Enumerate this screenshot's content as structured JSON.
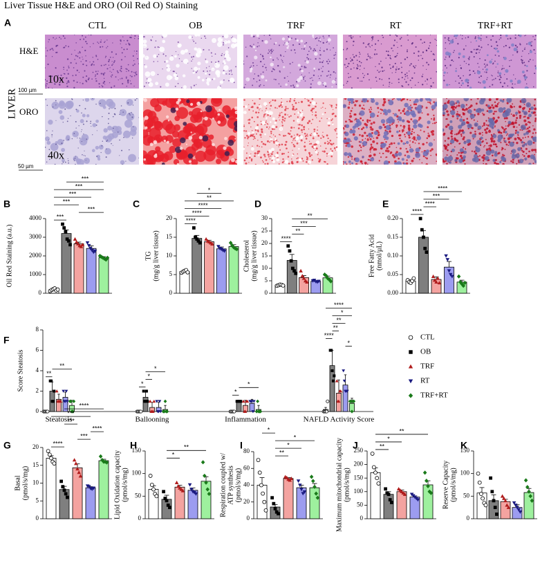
{
  "title": "Liver Tissue H&E and ORO (Oil Red O) Staining",
  "panel_a": {
    "panel": "A",
    "organ": "LIVER",
    "columns": [
      "CTL",
      "OB",
      "TRF",
      "RT",
      "TRF+RT"
    ],
    "rows": [
      {
        "name": "H&E",
        "magnification": "10x",
        "scale": "100 µm"
      },
      {
        "name": "ORO",
        "magnification": "40x",
        "scale": "50 µm"
      }
    ]
  },
  "legend": [
    {
      "name": "CTL",
      "color": "#ffffff",
      "marker": "circle",
      "marker_color": "#000000"
    },
    {
      "name": "OB",
      "color": "#7f7f7f",
      "marker": "square",
      "marker_color": "#000000"
    },
    {
      "name": "TRF",
      "color": "#f4a3a0",
      "marker": "triangle",
      "marker_color": "#b01c1c"
    },
    {
      "name": "RT",
      "color": "#9c9cf0",
      "marker": "triangle-down",
      "marker_color": "#1a1a80"
    },
    {
      "name": "TRF+RT",
      "color": "#9ef09e",
      "marker": "diamond",
      "marker_color": "#1a7a1a"
    }
  ],
  "chart_data": [
    {
      "type": "bar",
      "panel": "B",
      "ylabel": [
        "Oil Red Staining (a.u.)"
      ],
      "ylim": [
        0,
        4000
      ],
      "yticks": [
        0,
        1000,
        2000,
        3000,
        4000
      ],
      "values": [
        200,
        3200,
        2650,
        2400,
        1900
      ],
      "errors": [
        40,
        190,
        90,
        140,
        60
      ],
      "points": [
        [
          120,
          180,
          220,
          260,
          150,
          200
        ],
        [
          3700,
          3500,
          3300,
          2900,
          2800,
          2600
        ],
        [
          2900,
          2750,
          2650,
          2550,
          2500,
          2600
        ],
        [
          2700,
          2550,
          2400,
          2300,
          2200,
          2250
        ],
        [
          2000,
          1950,
          1900,
          1850,
          1800,
          1900
        ]
      ],
      "significance": [
        {
          "from": 0,
          "to": 1,
          "text": "***"
        },
        {
          "from": 2,
          "to": 4,
          "text": "***"
        },
        {
          "from": 0,
          "to": 2,
          "text": "***"
        },
        {
          "from": 0,
          "to": 3,
          "text": "***"
        },
        {
          "from": 0,
          "to": 4,
          "text": "***"
        },
        {
          "from": 1,
          "to": 4,
          "text": "***"
        }
      ]
    },
    {
      "type": "bar",
      "panel": "C",
      "ylabel": [
        "TG",
        "(mg/g liver tissue)"
      ],
      "ylim": [
        0,
        20
      ],
      "yticks": [
        0,
        5,
        10,
        15,
        20
      ],
      "values": [
        5.8,
        14.7,
        13.8,
        11.9,
        12.5
      ],
      "errors": [
        0.2,
        0.8,
        0.4,
        0.5,
        0.5
      ],
      "points": [
        [
          5.5,
          5.8,
          6.0,
          6.2,
          5.6
        ],
        [
          17.5,
          15,
          14.5,
          14,
          13.5
        ],
        [
          14.5,
          14,
          13.8,
          13.5,
          13.2
        ],
        [
          12.5,
          12,
          11.8,
          11.5,
          11.3
        ],
        [
          13.5,
          12.8,
          12.3,
          12,
          11.8
        ]
      ],
      "significance": [
        {
          "from": 0,
          "to": 1,
          "text": "****"
        },
        {
          "from": 0,
          "to": 2,
          "text": "****"
        },
        {
          "from": 0,
          "to": 3,
          "text": "****"
        },
        {
          "from": 0,
          "to": 4,
          "text": "**"
        },
        {
          "from": 1,
          "to": 3,
          "text": "*"
        }
      ]
    },
    {
      "type": "bar",
      "panel": "D",
      "ylabel": [
        "Cholesterol",
        "(mg/g liver tissue)"
      ],
      "ylim": [
        0,
        30
      ],
      "yticks": [
        0,
        5,
        10,
        15,
        20,
        25,
        30
      ],
      "values": [
        3.3,
        13.2,
        6.3,
        4.8,
        6.2
      ],
      "errors": [
        0.3,
        2.4,
        0.8,
        0.3,
        0.7
      ],
      "points": [
        [
          3,
          3.2,
          3.5,
          3.4,
          3.1
        ],
        [
          19,
          17,
          13,
          10,
          9,
          8
        ],
        [
          9,
          7,
          6,
          5,
          4.5
        ],
        [
          5,
          5.2,
          4.7,
          4.5,
          4.8
        ],
        [
          7.5,
          7,
          6,
          5.5,
          4.8
        ]
      ],
      "significance": [
        {
          "from": 0,
          "to": 1,
          "text": "****"
        },
        {
          "from": 1,
          "to": 2,
          "text": "**"
        },
        {
          "from": 1,
          "to": 3,
          "text": "***"
        },
        {
          "from": 1,
          "to": 4,
          "text": "**"
        }
      ]
    },
    {
      "type": "bar",
      "panel": "E",
      "ylabel": [
        "Free Fatty Acid",
        "(nmol/µL)"
      ],
      "ylim": [
        0,
        0.2
      ],
      "yticks": [
        {
          "value": 0,
          "label": "0.00"
        },
        {
          "value": 0.05,
          "label": "0.05"
        },
        {
          "value": 0.1,
          "label": "0.10"
        },
        {
          "value": 0.15,
          "label": "0.15"
        },
        {
          "value": 0.2,
          "label": "0.20"
        }
      ],
      "values": [
        0.033,
        0.15,
        0.037,
        0.07,
        0.03
      ],
      "errors": [
        0.003,
        0.018,
        0.007,
        0.015,
        0.005
      ],
      "points": [
        [
          0.035,
          0.03,
          0.028,
          0.033,
          0.04
        ],
        [
          0.2,
          0.17,
          0.15,
          0.12,
          0.11
        ],
        [
          0.045,
          0.035,
          0.03,
          0.04,
          0.028
        ],
        [
          0.1,
          0.09,
          0.06,
          0.05,
          0.045
        ],
        [
          0.045,
          0.03,
          0.025,
          0.02,
          0.028
        ]
      ],
      "significance": [
        {
          "from": 0,
          "to": 1,
          "text": "****"
        },
        {
          "from": 1,
          "to": 2,
          "text": "****"
        },
        {
          "from": 1,
          "to": 3,
          "text": "***"
        },
        {
          "from": 1,
          "to": 4,
          "text": "****"
        }
      ]
    },
    {
      "type": "grouped_bar",
      "panel": "F",
      "ylabel": [
        "Score Steatosis"
      ],
      "ylim": [
        0,
        8
      ],
      "yticks": [
        0,
        2,
        4,
        6,
        8
      ],
      "categories": [
        "Steatosis",
        "Ballooning",
        "Inflammation",
        "NAFLD Activity Score"
      ],
      "series": [
        {
          "values": [
            0,
            0,
            0,
            0.2
          ],
          "errors": [
            0,
            0,
            0,
            0.2
          ],
          "points": [
            [
              0,
              0,
              0,
              0,
              0
            ],
            [
              0,
              0,
              0,
              0,
              0
            ],
            [
              0,
              0,
              0,
              0,
              0
            ],
            [
              0,
              0,
              0,
              0,
              1
            ]
          ]
        },
        {
          "values": [
            2.0,
            1.4,
            1.0,
            4.5
          ],
          "errors": [
            0.9,
            0.5,
            0,
            1.5
          ],
          "points": [
            [
              3,
              3,
              1,
              1,
              2
            ],
            [
              2,
              1,
              1,
              2,
              1
            ],
            [
              1,
              1,
              1,
              1,
              1
            ],
            [
              6,
              6,
              4,
              3,
              3.5
            ]
          ]
        },
        {
          "values": [
            1.2,
            0.4,
            0.6,
            1.8
          ],
          "errors": [
            0.5,
            0.5,
            0.5,
            1.3
          ],
          "points": [
            [
              2,
              1,
              1,
              1,
              1
            ],
            [
              1,
              0,
              0,
              0,
              1
            ],
            [
              1,
              0,
              0,
              1,
              1
            ],
            [
              3,
              1,
              1,
              2,
              2
            ]
          ]
        },
        {
          "values": [
            1.4,
            0.4,
            0.8,
            2.6
          ],
          "errors": [
            0.5,
            0.5,
            0.4,
            1.0
          ],
          "points": [
            [
              2,
              1,
              1,
              2,
              1
            ],
            [
              1,
              0,
              0,
              1,
              0
            ],
            [
              1,
              1,
              1,
              0,
              1
            ],
            [
              4,
              3,
              2,
              2,
              2
            ]
          ]
        },
        {
          "values": [
            0.6,
            0.2,
            0.2,
            0.8
          ],
          "errors": [
            0.5,
            0.4,
            0.4,
            0.5
          ],
          "points": [
            [
              1,
              1,
              0,
              0,
              1
            ],
            [
              0,
              0,
              1,
              0,
              0
            ],
            [
              0,
              1,
              0,
              0,
              0
            ],
            [
              1,
              1,
              0,
              1,
              1
            ]
          ]
        }
      ],
      "significance": [
        {
          "category": 0,
          "from": 0,
          "to": 1,
          "text": "**"
        },
        {
          "category": 0,
          "from": 1,
          "to": 4,
          "text": "**"
        },
        {
          "category": 1,
          "from": 0,
          "to": 1,
          "text": "*"
        },
        {
          "category": 1,
          "from": 1,
          "to": 2,
          "text": "*"
        },
        {
          "category": 1,
          "from": 1,
          "to": 4,
          "text": "*"
        },
        {
          "category": 2,
          "from": 0,
          "to": 1,
          "text": "*"
        },
        {
          "category": 2,
          "from": 1,
          "to": 4,
          "text": "*"
        },
        {
          "category": 3,
          "from": 3,
          "to": 4,
          "text": "*"
        },
        {
          "category": 3,
          "from": 0,
          "to": 1,
          "text": "****"
        },
        {
          "category": 3,
          "from": 1,
          "to": 2,
          "text": "**"
        },
        {
          "category": 3,
          "from": 1,
          "to": 3,
          "text": "**"
        },
        {
          "category": 3,
          "from": 1,
          "to": 4,
          "text": "*"
        },
        {
          "category": 3,
          "from": 0,
          "to": 4,
          "text": "****"
        }
      ]
    },
    {
      "type": "bar",
      "panel": "G",
      "ylabel": [
        "Basal",
        "(pmol/s/mg)"
      ],
      "ylim": [
        0,
        20
      ],
      "yticks": [
        0,
        5,
        10,
        15,
        20
      ],
      "values": [
        17,
        8.2,
        14.3,
        8.7,
        16.3
      ],
      "errors": [
        0.7,
        0.9,
        1.1,
        0.3,
        0.4
      ],
      "points": [
        [
          19,
          18,
          17,
          16,
          15.5
        ],
        [
          10.5,
          9,
          8,
          7,
          6
        ],
        [
          16.5,
          15.5,
          14,
          13,
          12
        ],
        [
          9.2,
          9,
          8.5,
          8.3,
          8.6
        ],
        [
          17.5,
          16.5,
          16,
          16,
          15.8
        ]
      ],
      "significance": [
        {
          "from": 0,
          "to": 1,
          "text": "****"
        },
        {
          "from": 2,
          "to": 3,
          "text": "***"
        },
        {
          "from": 3,
          "to": 4,
          "text": "****"
        },
        {
          "from": 1,
          "to": 2,
          "text": "***"
        },
        {
          "from": 0,
          "to": 3,
          "text": "***"
        },
        {
          "from": 1,
          "to": 4,
          "text": "****"
        }
      ]
    },
    {
      "type": "bar",
      "panel": "H",
      "ylabel": [
        "Lipid Oxidation capacity",
        "(pmol/s/mg)"
      ],
      "ylim": [
        0,
        150
      ],
      "yticks": [
        0,
        50,
        100,
        150
      ],
      "values": [
        65,
        43,
        70,
        63,
        83
      ],
      "errors": [
        8,
        9,
        4,
        5,
        10
      ],
      "points": [
        [
          95,
          75,
          65,
          55,
          50
        ],
        [
          60,
          45,
          40,
          30,
          25
        ],
        [
          80,
          72,
          68,
          65,
          62
        ],
        [
          75,
          65,
          60,
          58,
          55
        ],
        [
          125,
          95,
          80,
          65,
          55
        ]
      ],
      "significance": [
        {
          "from": 1,
          "to": 2,
          "text": "*"
        },
        {
          "from": 1,
          "to": 4,
          "text": "**"
        }
      ]
    },
    {
      "type": "bar",
      "panel": "I",
      "ylabel": [
        "Respiration coupled w/",
        "ATP synthesis",
        "(pmol/s/mg)"
      ],
      "ylim": [
        0,
        80
      ],
      "yticks": [
        0,
        20,
        40,
        60,
        80
      ],
      "values": [
        40,
        14,
        48,
        37,
        37
      ],
      "errors": [
        9,
        3,
        1,
        3,
        5
      ],
      "points": [
        [
          70,
          55,
          40,
          30,
          20,
          10
        ],
        [
          25,
          18,
          12,
          8,
          6
        ],
        [
          50,
          49,
          47,
          46,
          48
        ],
        [
          45,
          40,
          35,
          30,
          32
        ],
        [
          50,
          45,
          38,
          30,
          25
        ]
      ],
      "significance": [
        {
          "from": 1,
          "to": 2,
          "text": "**"
        },
        {
          "from": 1,
          "to": 3,
          "text": "*"
        },
        {
          "from": 1,
          "to": 4,
          "text": "*"
        },
        {
          "from": 0,
          "to": 1,
          "text": "*"
        }
      ]
    },
    {
      "type": "bar",
      "panel": "J",
      "ylabel": [
        "Maximum mitochondrial capacity",
        "(pmol/s/mg)"
      ],
      "ylim": [
        0,
        250
      ],
      "yticks": [
        0,
        50,
        100,
        150,
        200,
        250
      ],
      "values": [
        170,
        90,
        100,
        80,
        125
      ],
      "errors": [
        18,
        10,
        6,
        4,
        15
      ],
      "points": [
        [
          240,
          190,
          170,
          150,
          130
        ],
        [
          110,
          95,
          90,
          70,
          60
        ],
        [
          110,
          105,
          100,
          95,
          90
        ],
        [
          90,
          85,
          80,
          75,
          70
        ],
        [
          170,
          140,
          120,
          100,
          95
        ]
      ],
      "significance": [
        {
          "from": 0,
          "to": 1,
          "text": "**"
        },
        {
          "from": 0,
          "to": 2,
          "text": "*"
        },
        {
          "from": 0,
          "to": 4,
          "text": "**"
        }
      ]
    },
    {
      "type": "bar",
      "panel": "K",
      "ylabel": [
        "Reserve Capacity",
        "(pmol/s/mg)"
      ],
      "ylim": [
        0,
        150
      ],
      "yticks": [
        0,
        50,
        100,
        150
      ],
      "values": [
        57,
        40,
        38,
        25,
        58
      ],
      "errors": [
        12,
        13,
        5,
        6,
        9
      ],
      "points": [
        [
          100,
          80,
          55,
          45,
          35,
          30
        ],
        [
          90,
          60,
          40,
          25,
          10
        ],
        [
          50,
          45,
          40,
          30,
          25
        ],
        [
          35,
          30,
          25,
          20,
          15
        ],
        [
          85,
          70,
          60,
          50,
          40
        ]
      ],
      "significance": []
    }
  ]
}
